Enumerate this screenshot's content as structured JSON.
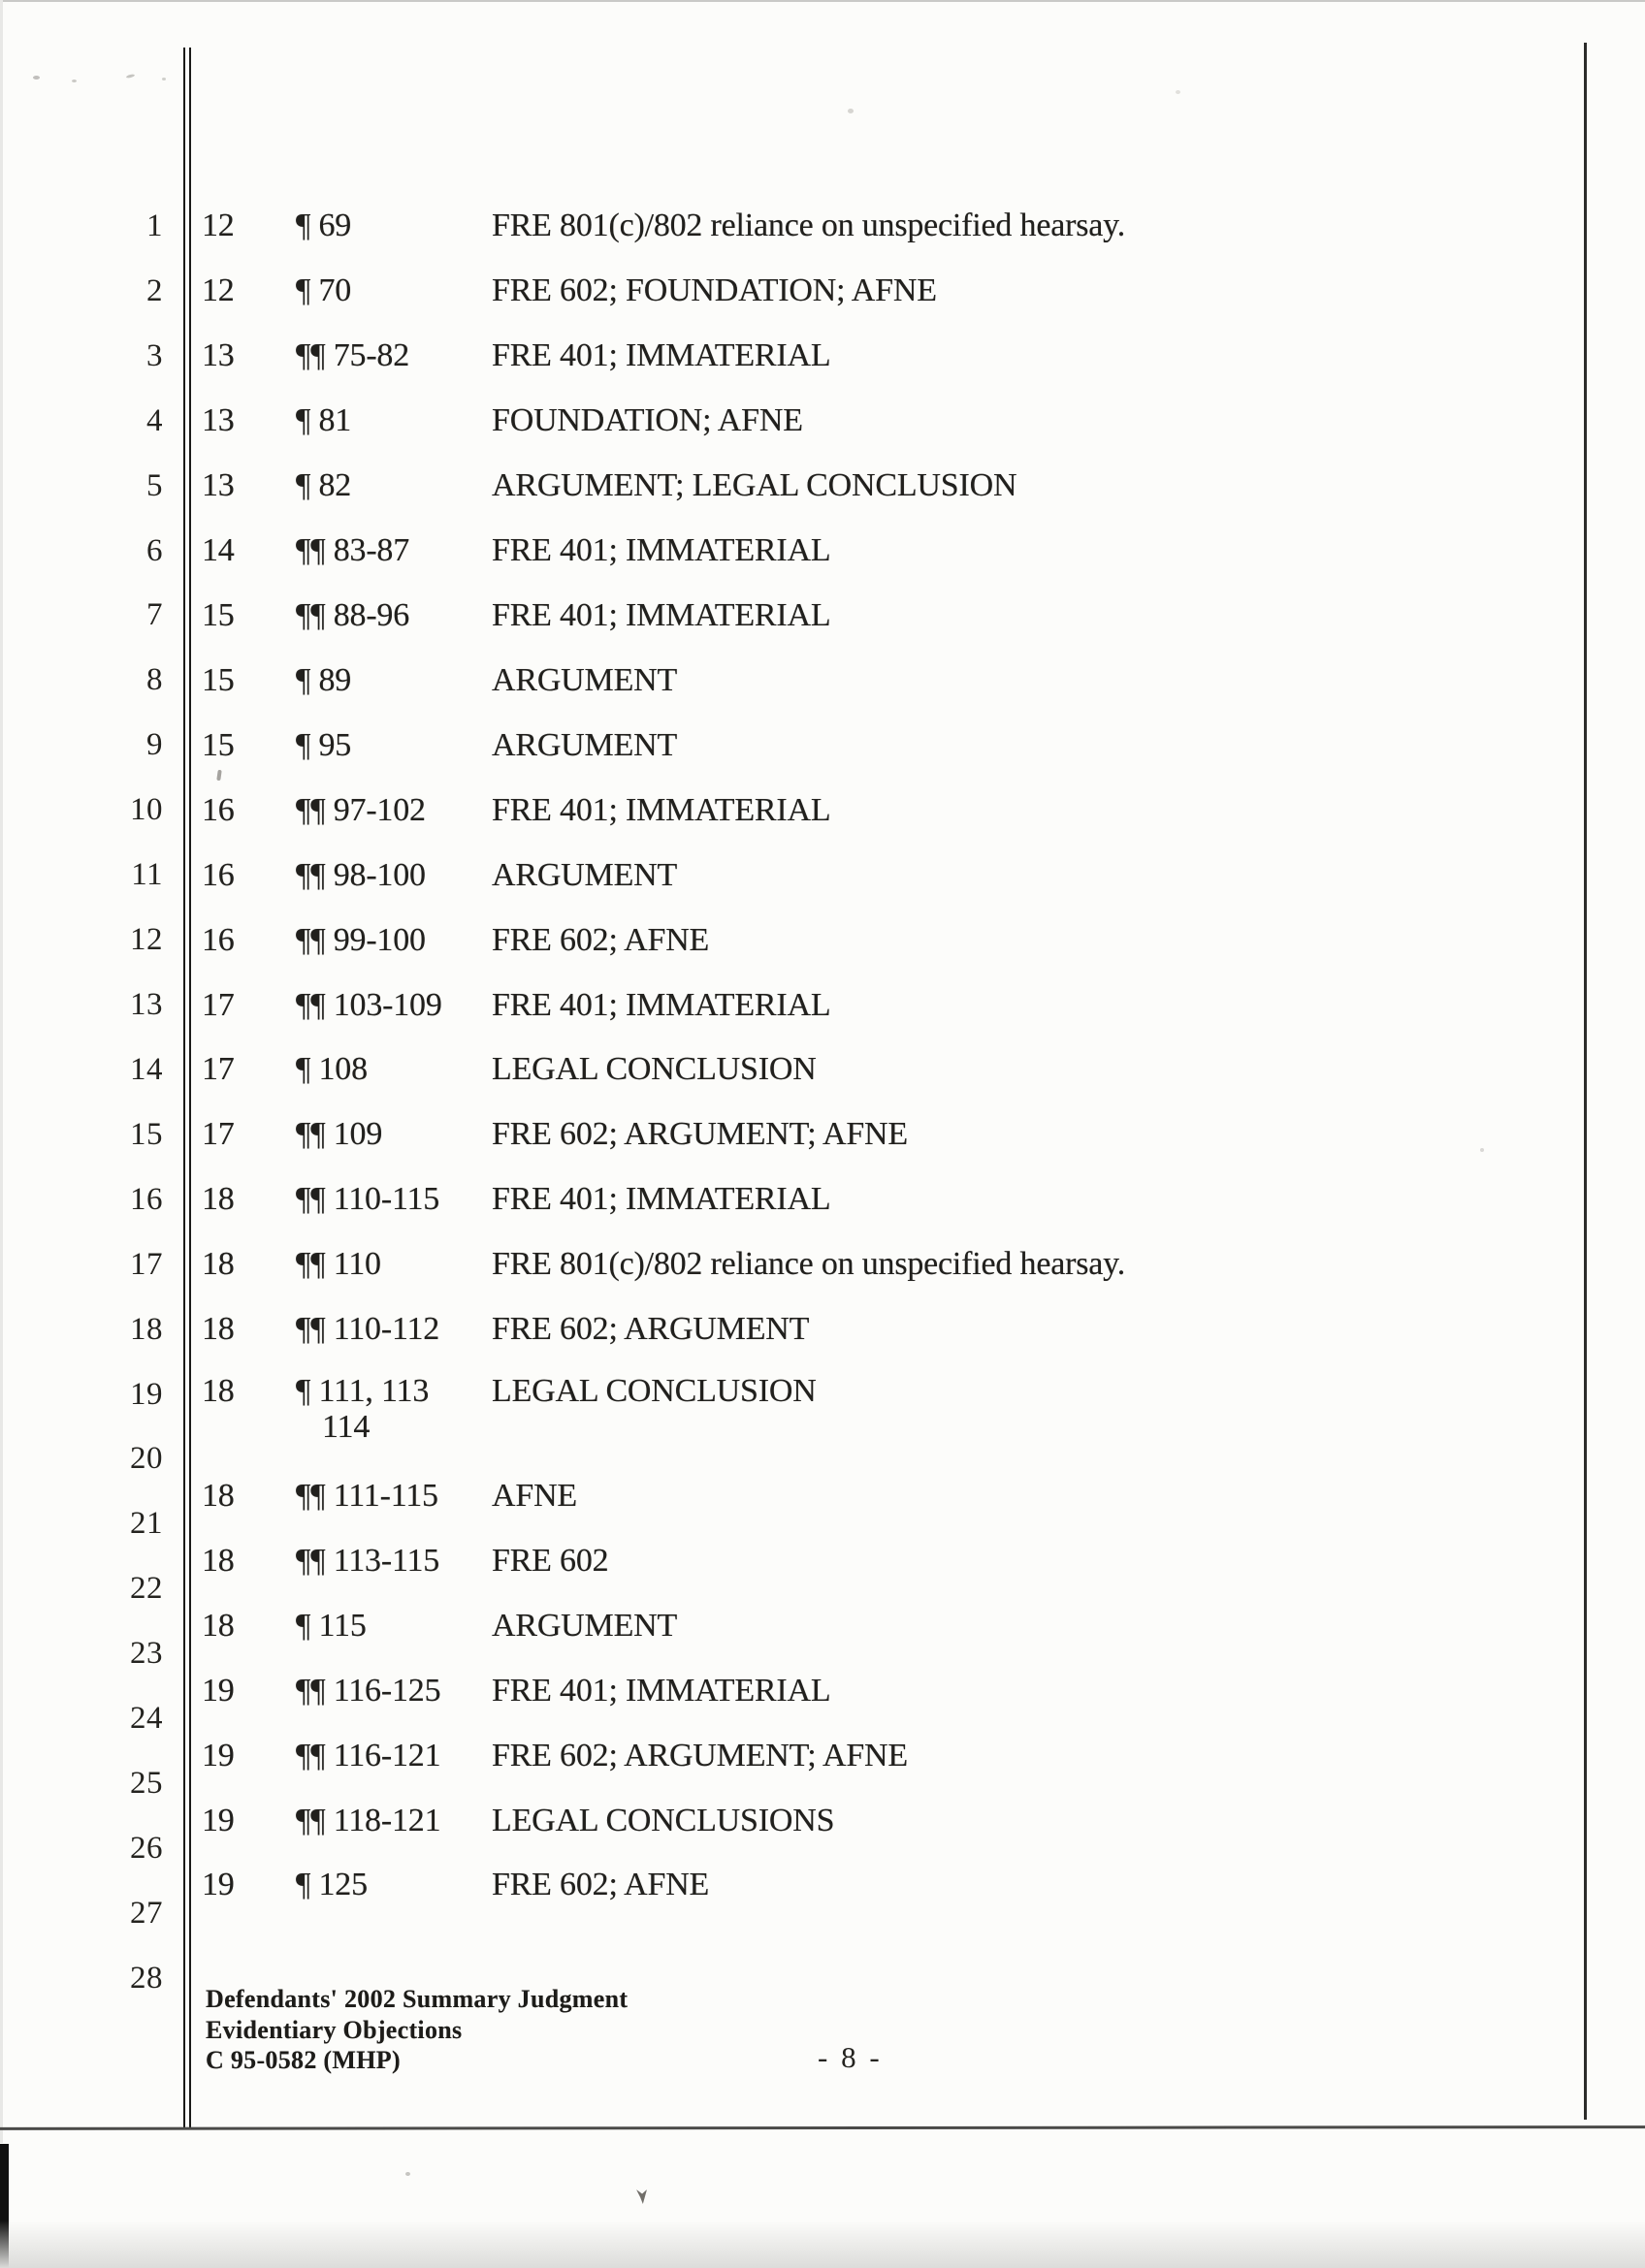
{
  "line_numbers": [
    "1",
    "2",
    "3",
    "4",
    "5",
    "6",
    "7",
    "8",
    "9",
    "10",
    "11",
    "12",
    "13",
    "14",
    "15",
    "16",
    "17",
    "18",
    "19",
    "20",
    "21",
    "22",
    "23",
    "24",
    "25",
    "26",
    "27",
    "28"
  ],
  "table": {
    "rows": [
      {
        "page": "12",
        "para": "¶ 69",
        "objection": "FRE 801(c)/802 reliance on unspecified hearsay."
      },
      {
        "page": "12",
        "para": "¶ 70",
        "objection": "FRE 602; FOUNDATION; AFNE"
      },
      {
        "page": "13",
        "para": "¶¶ 75-82",
        "objection": "FRE 401; IMMATERIAL"
      },
      {
        "page": "13",
        "para": "¶ 81",
        "objection": "FOUNDATION; AFNE"
      },
      {
        "page": "13",
        "para": "¶ 82",
        "objection": "ARGUMENT; LEGAL CONCLUSION"
      },
      {
        "page": "14",
        "para": "¶¶ 83-87",
        "objection": "FRE 401; IMMATERIAL"
      },
      {
        "page": "15",
        "para": "¶¶ 88-96",
        "objection": "FRE 401; IMMATERIAL"
      },
      {
        "page": "15",
        "para": "¶ 89",
        "objection": "ARGUMENT"
      },
      {
        "page": "15",
        "para": "¶ 95",
        "objection": "ARGUMENT"
      },
      {
        "page": "16",
        "para": "¶¶ 97-102",
        "objection": "FRE 401; IMMATERIAL"
      },
      {
        "page": "16",
        "para": "¶¶ 98-100",
        "objection": "ARGUMENT"
      },
      {
        "page": "16",
        "para": "¶¶ 99-100",
        "objection": "FRE 602; AFNE"
      },
      {
        "page": "17",
        "para": "¶¶ 103-109",
        "objection": "FRE 401; IMMATERIAL"
      },
      {
        "page": "17",
        "para": "¶ 108",
        "objection": "LEGAL CONCLUSION"
      },
      {
        "page": "17",
        "para": "¶¶ 109",
        "objection": "FRE 602; ARGUMENT; AFNE"
      },
      {
        "page": "18",
        "para": "¶¶ 110-115",
        "objection": "FRE 401; IMMATERIAL"
      },
      {
        "page": "18",
        "para": "¶¶ 110",
        "objection": "FRE 801(c)/802 reliance on unspecified hearsay."
      },
      {
        "page": "18",
        "para": "¶¶ 110-112",
        "objection": "FRE 602; ARGUMENT"
      },
      {
        "page": "18",
        "para": "¶ 111, 113",
        "para_line2": "114",
        "objection": "LEGAL CONCLUSION"
      },
      {
        "page": "18",
        "para": "¶¶ 111-115",
        "objection": "AFNE"
      },
      {
        "page": "18",
        "para": "¶¶ 113-115",
        "objection": "FRE 602"
      },
      {
        "page": "18",
        "para": "¶ 115",
        "objection": "ARGUMENT"
      },
      {
        "page": "19",
        "para": "¶¶ 116-125",
        "objection": "FRE 401; IMMATERIAL"
      },
      {
        "page": "19",
        "para": "¶¶ 116-121",
        "objection": "FRE 602; ARGUMENT; AFNE"
      },
      {
        "page": "19",
        "para": "¶¶ 118-121",
        "objection": "LEGAL CONCLUSIONS"
      },
      {
        "page": "19",
        "para": "¶ 125",
        "objection": "FRE 602; AFNE"
      }
    ]
  },
  "footer": {
    "lines": [
      "Defendants' 2002 Summary Judgment",
      "Evidentiary Objections",
      "C 95-0582 (MHP)"
    ],
    "page_number": "- 8 -"
  }
}
